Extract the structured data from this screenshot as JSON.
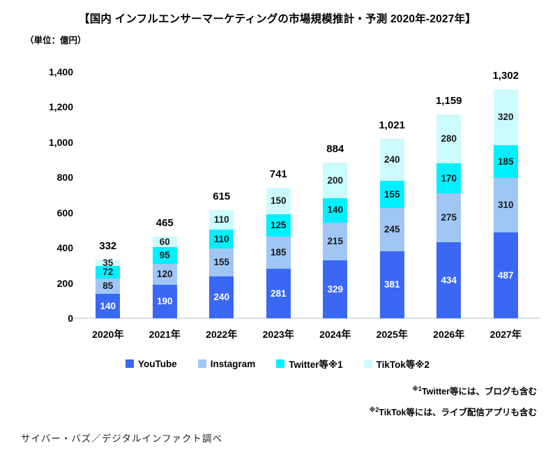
{
  "title": "【国内 インフルエンサーマーケティングの市場規模推計・予測 2020年-2027年】",
  "unit_label": "（単位：億円）",
  "source": "サイバー・バズ／デジタルインファクト調べ",
  "footnotes": [
    {
      "marker": "※1",
      "text": "Twitter等には、ブログも含む"
    },
    {
      "marker": "※2",
      "text": "TikTok等には、ライブ配信アプリも含む"
    }
  ],
  "colors": {
    "youtube": "#3A68F4",
    "instagram": "#A0C6F4",
    "twitter": "#00F0FF",
    "tiktok": "#CCFBFE",
    "axis_line": "#D9DFE8",
    "label_dark": "#1A1A1A",
    "label_light": "#FFFFFF",
    "text": "#000000"
  },
  "chart_data": {
    "type": "bar",
    "stacked": true,
    "title": "国内 インフルエンサーマーケティングの市場規模推計・予測 2020年-2027年",
    "unit": "億円",
    "categories": [
      "2020年",
      "2021年",
      "2022年",
      "2023年",
      "2024年",
      "2025年",
      "2026年",
      "2027年"
    ],
    "series": [
      {
        "name": "YouTube",
        "color": "#3A68F4",
        "label_color": "#FFFFFF",
        "values": [
          140,
          190,
          240,
          281,
          329,
          381,
          434,
          487
        ]
      },
      {
        "name": "Instagram",
        "color": "#A0C6F4",
        "label_color": "#1A1A1A",
        "values": [
          85,
          120,
          155,
          185,
          215,
          245,
          275,
          310
        ]
      },
      {
        "name": "Twitter等※1",
        "color": "#00F0FF",
        "label_color": "#1A1A1A",
        "values": [
          72,
          95,
          110,
          125,
          140,
          155,
          170,
          185
        ]
      },
      {
        "name": "TikTok等※2",
        "color": "#CCFBFE",
        "label_color": "#1A1A1A",
        "values": [
          35,
          60,
          110,
          150,
          200,
          240,
          280,
          320
        ]
      }
    ],
    "totals": [
      "332",
      "465",
      "615",
      "741",
      "884",
      "1,021",
      "1,159",
      "1,302"
    ],
    "ylim": [
      0,
      1400
    ],
    "ytick_labels": [
      "1,400",
      "1,200",
      "1,000",
      "800",
      "600",
      "400",
      "200",
      "0"
    ],
    "grid": false,
    "legend_position": "bottom"
  }
}
